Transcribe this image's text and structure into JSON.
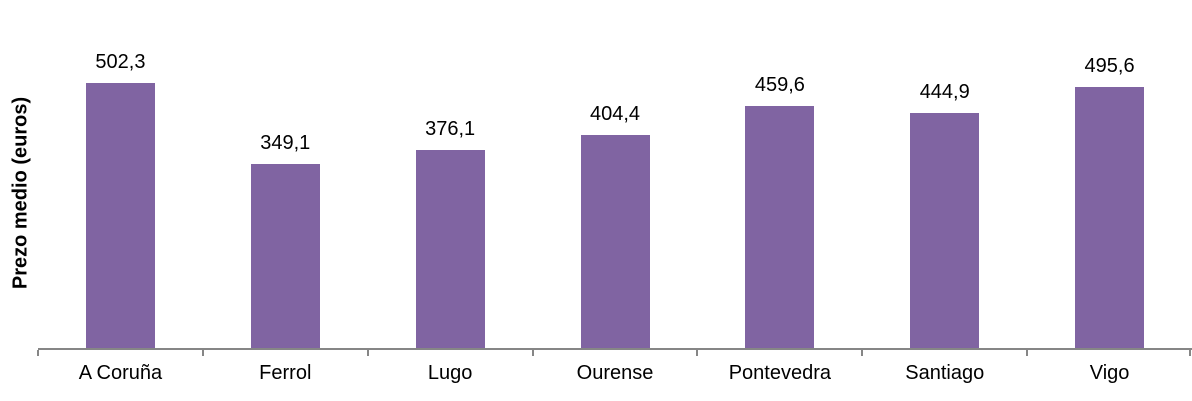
{
  "chart_data": {
    "type": "bar",
    "categories": [
      "A Coruña",
      "Ferrol",
      "Lugo",
      "Ourense",
      "Pontevedra",
      "Santiago",
      "Vigo"
    ],
    "values": [
      502.3,
      349.1,
      376.1,
      404.4,
      459.6,
      444.9,
      495.6
    ],
    "value_labels": [
      "502,3",
      "349,1",
      "376,1",
      "404,4",
      "459,6",
      "444,9",
      "495,6"
    ],
    "title": "",
    "xlabel": "",
    "ylabel": "Prezo medio (euros)",
    "ylim": [
      0,
      660
    ],
    "grid": false,
    "legend": false,
    "decimal_separator": ",",
    "bar_color": "#8064A2",
    "axis_color": "#868686",
    "text_color": "#000000"
  }
}
